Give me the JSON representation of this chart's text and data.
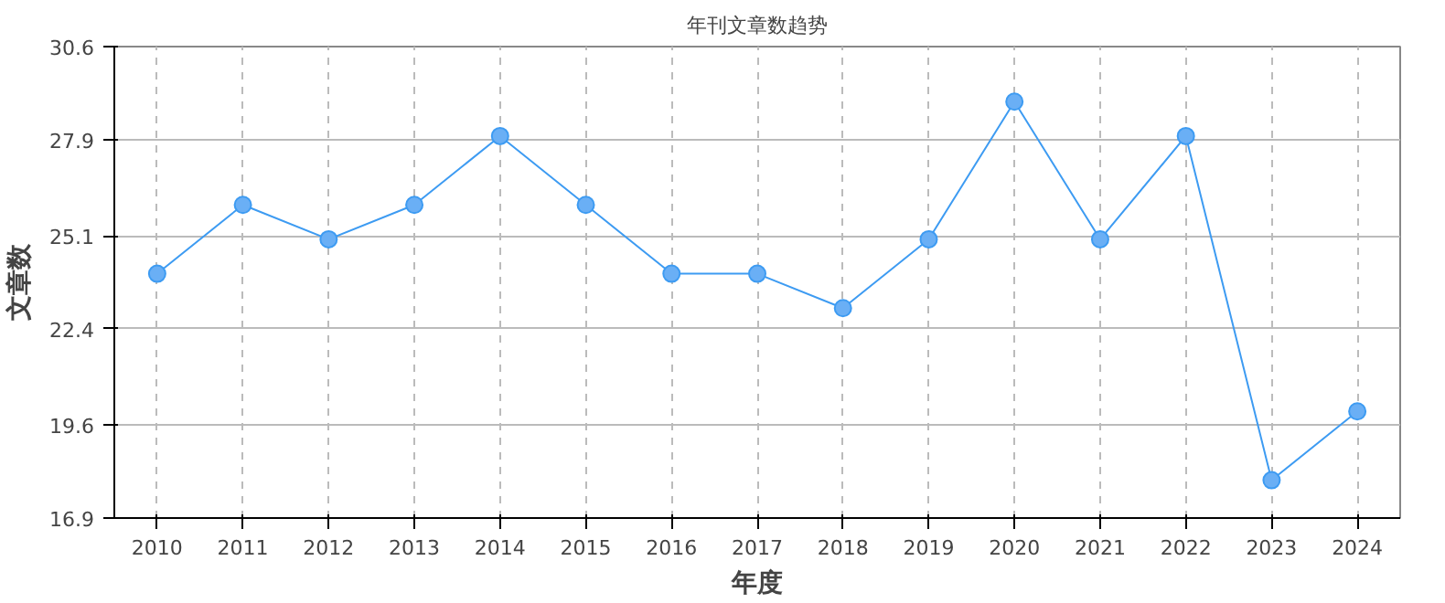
{
  "chart_data": {
    "type": "line",
    "title": "年刊文章数趋势",
    "xlabel": "年度",
    "ylabel": "文章数",
    "categories": [
      "2010",
      "2011",
      "2012",
      "2013",
      "2014",
      "2015",
      "2016",
      "2017",
      "2018",
      "2019",
      "2020",
      "2021",
      "2022",
      "2023",
      "2024"
    ],
    "series": [
      {
        "color": "#3d9bf2",
        "values": [
          24,
          26,
          25,
          26,
          28,
          26,
          24,
          24,
          23,
          25,
          29,
          25,
          28,
          18,
          20
        ]
      }
    ],
    "ylim": [
      16.9,
      30.6
    ],
    "yticks": [
      16.9,
      19.6,
      22.4,
      25.1,
      27.9,
      30.6
    ],
    "grid": true,
    "marker": "circle",
    "line_style": "solid"
  }
}
